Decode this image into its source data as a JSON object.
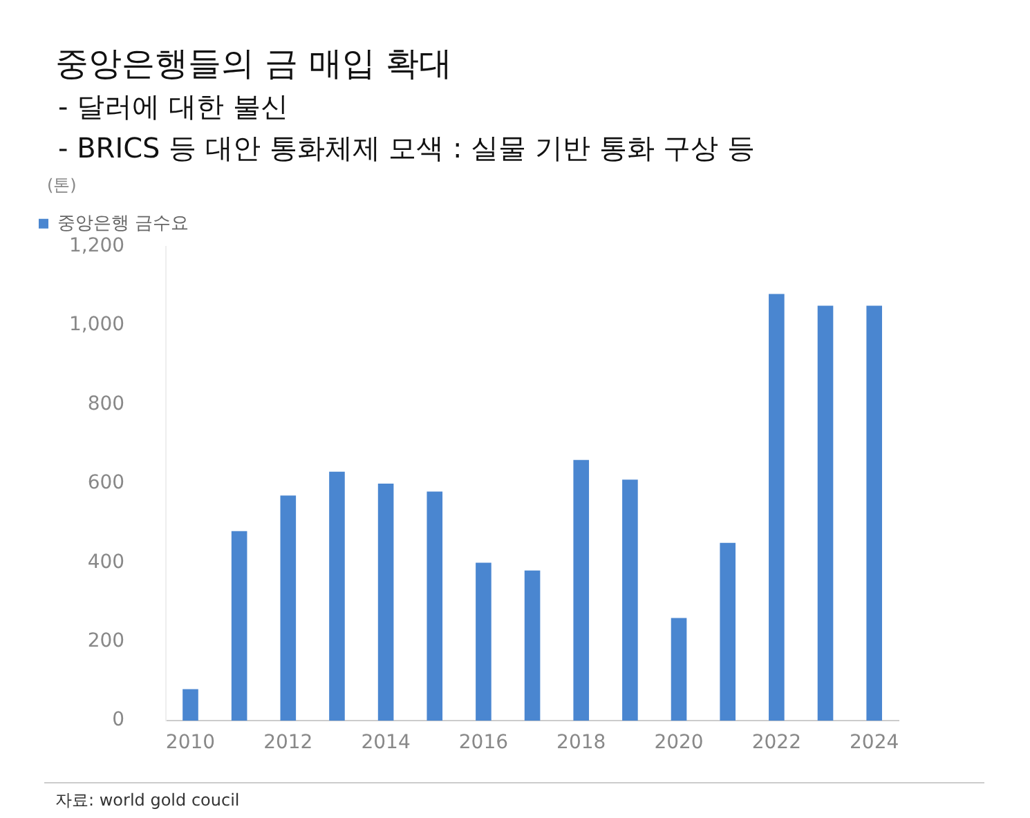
{
  "chart_data": {
    "type": "bar",
    "title": "중앙은행들의 금 매입 확대",
    "subtitle": "- 달러에 대한 불신\n- BRICS 등 대안 통화체제 모색 : 실물 기반 통화 구상 등",
    "ylabel": "(톤)",
    "annotations": [
      "자료: world gold coucil"
    ],
    "categories": [
      "2010",
      null,
      "2012",
      null,
      "2014",
      null,
      "2016",
      null,
      "2018",
      null,
      "2020",
      null,
      "2022",
      null,
      "2024"
    ],
    "series": [
      {
        "name": "중앙은행 금수요",
        "color": "#4a86d0",
        "values": [
          80,
          480,
          570,
          630,
          600,
          580,
          400,
          380,
          660,
          610,
          260,
          450,
          1080,
          1050,
          1050
        ]
      }
    ],
    "ylim": [
      0,
      1200
    ],
    "yticks": [
      0,
      200,
      400,
      600,
      800,
      {
        "value": 1000,
        "label": "1,000"
      },
      {
        "value": 1200,
        "label": "1,200"
      }
    ],
    "grid": false,
    "legend": "top"
  }
}
